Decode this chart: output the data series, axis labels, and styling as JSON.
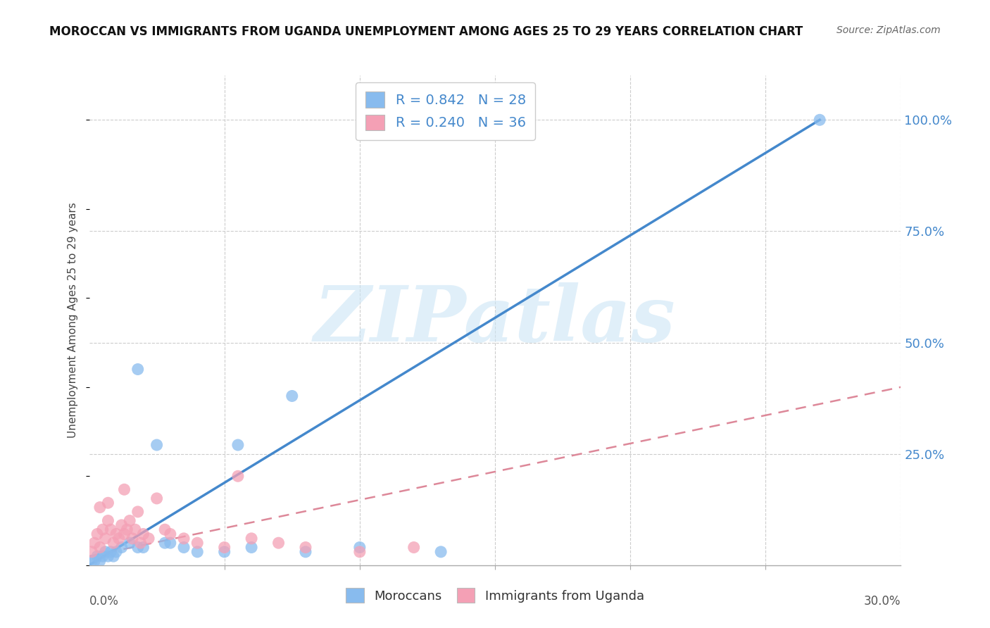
{
  "title": "MOROCCAN VS IMMIGRANTS FROM UGANDA UNEMPLOYMENT AMONG AGES 25 TO 29 YEARS CORRELATION CHART",
  "source": "Source: ZipAtlas.com",
  "ylabel_label": "Unemployment Among Ages 25 to 29 years",
  "xmin": 0.0,
  "xmax": 0.3,
  "ymin": 0.0,
  "ymax": 1.1,
  "blue_color": "#88bbee",
  "pink_color": "#f4a0b5",
  "blue_line_color": "#4488cc",
  "pink_line_color": "#dd8899",
  "watermark": "ZIPatlas",
  "background_color": "#ffffff",
  "grid_color": "#cccccc",
  "blue_R": 0.842,
  "blue_N": 28,
  "pink_R": 0.24,
  "pink_N": 36,
  "blue_trend_x0": 0.0,
  "blue_trend_y0": 0.0,
  "blue_trend_x1": 0.27,
  "blue_trend_y1": 1.0,
  "pink_trend_x0": 0.0,
  "pink_trend_y0": 0.02,
  "pink_trend_x1": 0.3,
  "pink_trend_y1": 0.4,
  "blue_scatter_x": [
    0.001,
    0.002,
    0.003,
    0.004,
    0.005,
    0.006,
    0.007,
    0.008,
    0.009,
    0.01,
    0.012,
    0.015,
    0.018,
    0.02,
    0.025,
    0.03,
    0.035,
    0.04,
    0.05,
    0.06,
    0.075,
    0.1,
    0.13,
    0.018,
    0.028,
    0.27,
    0.055,
    0.08
  ],
  "blue_scatter_y": [
    0.01,
    0.01,
    0.02,
    0.01,
    0.02,
    0.03,
    0.02,
    0.03,
    0.02,
    0.03,
    0.04,
    0.05,
    0.04,
    0.04,
    0.27,
    0.05,
    0.04,
    0.03,
    0.03,
    0.04,
    0.38,
    0.04,
    0.03,
    0.44,
    0.05,
    1.0,
    0.27,
    0.03
  ],
  "pink_scatter_x": [
    0.001,
    0.002,
    0.003,
    0.004,
    0.005,
    0.006,
    0.007,
    0.008,
    0.009,
    0.01,
    0.011,
    0.012,
    0.013,
    0.014,
    0.015,
    0.016,
    0.017,
    0.018,
    0.019,
    0.02,
    0.022,
    0.025,
    0.028,
    0.03,
    0.035,
    0.04,
    0.05,
    0.06,
    0.07,
    0.08,
    0.1,
    0.12,
    0.004,
    0.007,
    0.013,
    0.055
  ],
  "pink_scatter_y": [
    0.03,
    0.05,
    0.07,
    0.04,
    0.08,
    0.06,
    0.1,
    0.08,
    0.05,
    0.07,
    0.06,
    0.09,
    0.07,
    0.08,
    0.1,
    0.06,
    0.08,
    0.12,
    0.05,
    0.07,
    0.06,
    0.15,
    0.08,
    0.07,
    0.06,
    0.05,
    0.04,
    0.06,
    0.05,
    0.04,
    0.03,
    0.04,
    0.13,
    0.14,
    0.17,
    0.2
  ]
}
